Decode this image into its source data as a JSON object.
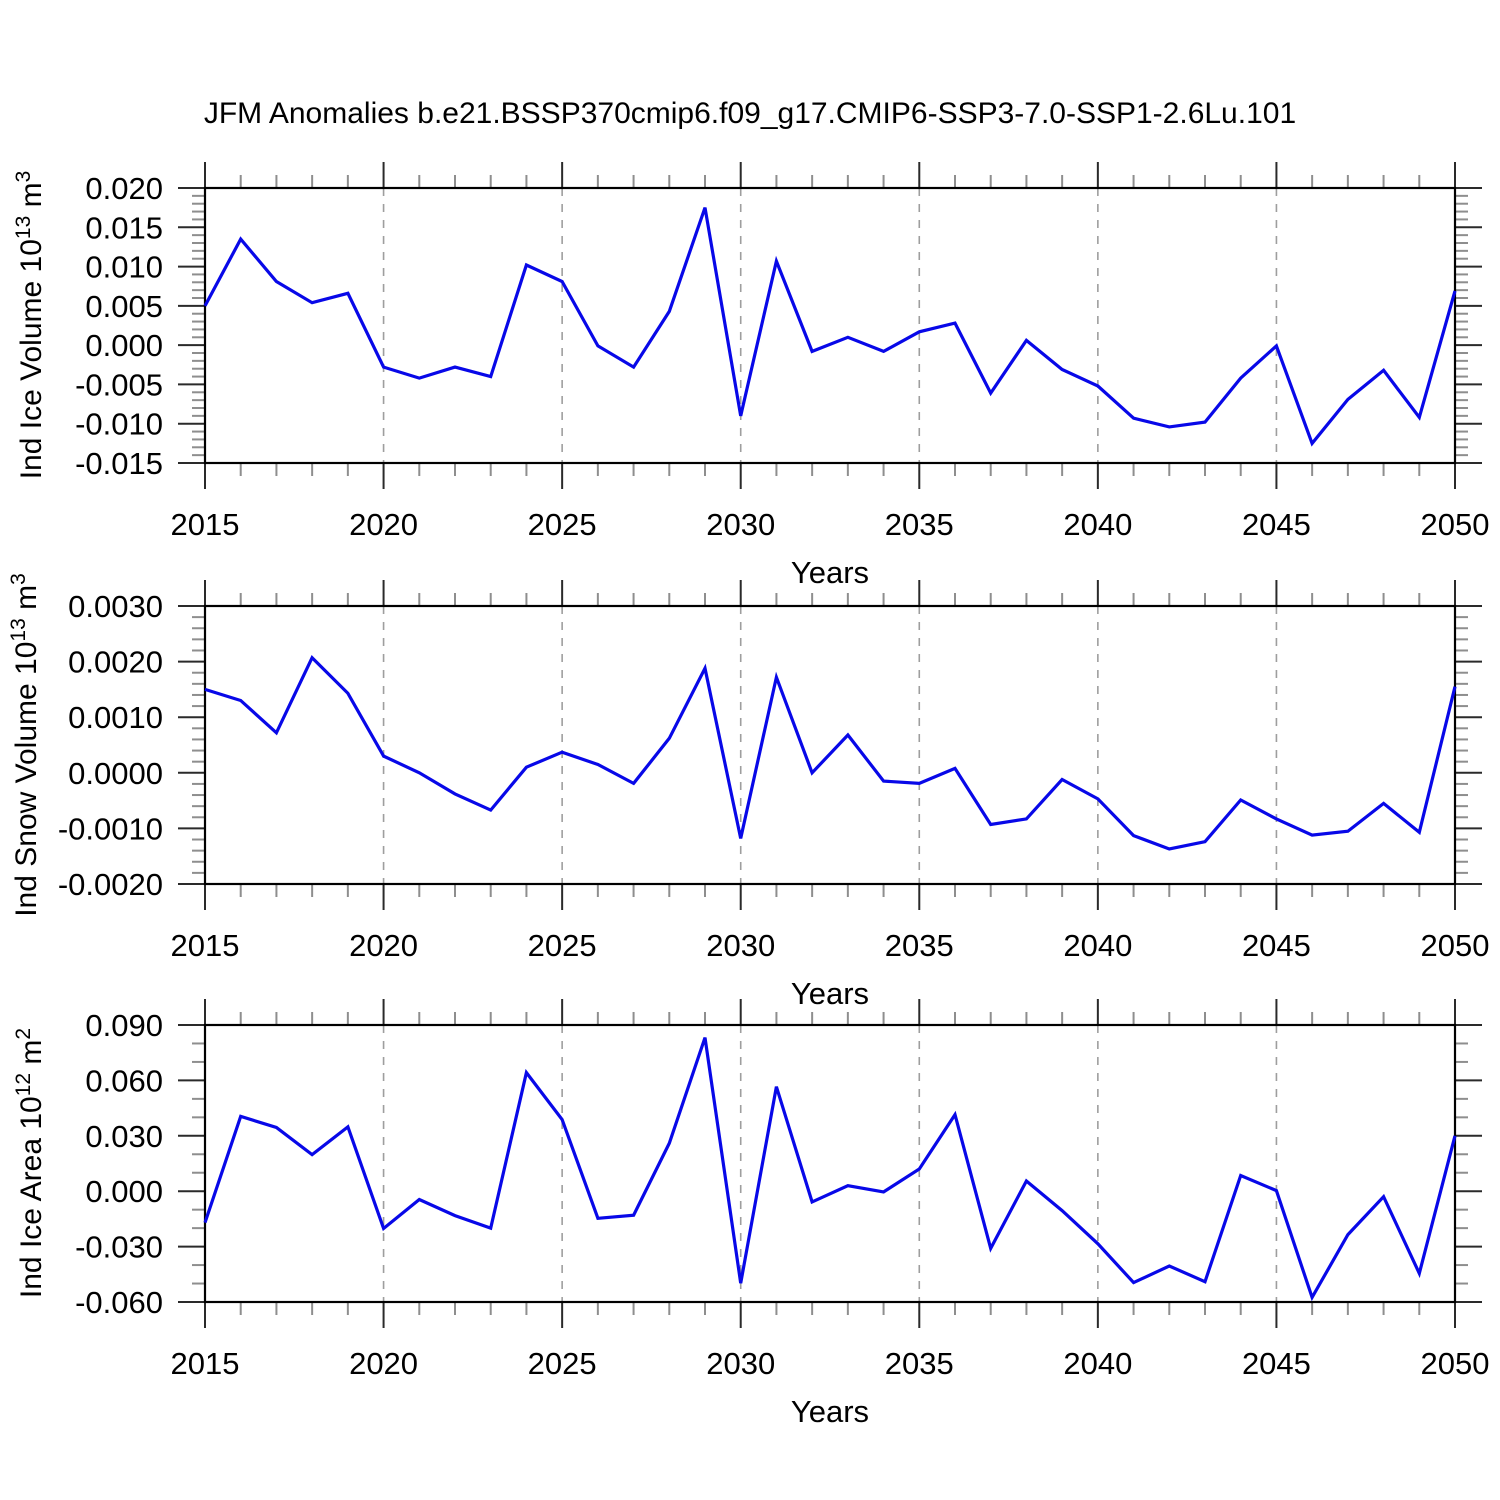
{
  "title": "JFM Anomalies b.e21.BSSP370cmip6.f09_g17.CMIP6-SSP3-7.0-SSP1-2.6Lu.101",
  "years": [
    2015,
    2016,
    2017,
    2018,
    2019,
    2020,
    2021,
    2022,
    2023,
    2024,
    2025,
    2026,
    2027,
    2028,
    2029,
    2030,
    2031,
    2032,
    2033,
    2034,
    2035,
    2036,
    2037,
    2038,
    2039,
    2040,
    2041,
    2042,
    2043,
    2044,
    2045,
    2046,
    2047,
    2048,
    2049,
    2050
  ],
  "colors": {
    "line": "#0808e8",
    "frame": "#000000",
    "grid": "#9e9e9e",
    "major_tick": "#2a2a2a",
    "minor_tick": "#8e8e8e",
    "text": "#000000"
  },
  "chart_data": [
    {
      "type": "line",
      "ylabel_parts": {
        "base": "Ind Ice Volume 10",
        "exp": "13",
        "unit": " m",
        "unit_exp": "3"
      },
      "xlabel": "Years",
      "ylim": [
        -0.015,
        0.02
      ],
      "ytick_values": [
        0.02,
        0.015,
        0.01,
        0.005,
        0.0,
        -0.005,
        -0.01,
        -0.015
      ],
      "ytick_labels": [
        "0.020",
        "0.015",
        "0.010",
        "0.005",
        "0.000",
        "-0.005",
        "-0.010",
        "-0.015"
      ],
      "y_minor_step": 0.001,
      "xticks": [
        2015,
        2020,
        2025,
        2030,
        2035,
        2040,
        2045,
        2050
      ],
      "x_gridlines": [
        2020,
        2025,
        2030,
        2035,
        2040,
        2045
      ],
      "values": [
        0.005,
        0.0135,
        0.0081,
        0.0054,
        0.0066,
        -0.0028,
        -0.0042,
        -0.0028,
        -0.004,
        0.0102,
        0.0081,
        -0.0001,
        -0.0028,
        0.0043,
        0.0175,
        -0.009,
        0.0107,
        -0.0008,
        0.001,
        -0.0008,
        0.0017,
        0.0028,
        -0.0061,
        0.0006,
        -0.0031,
        -0.0052,
        -0.0093,
        -0.0104,
        -0.0098,
        -0.0042,
        -0.0001,
        -0.0125,
        -0.0069,
        -0.0032,
        -0.0092,
        0.0069
      ]
    },
    {
      "type": "line",
      "ylabel_parts": {
        "base": "Ind Snow Volume 10",
        "exp": "13",
        "unit": " m",
        "unit_exp": "3"
      },
      "xlabel": "Years",
      "ylim": [
        -0.002,
        0.003
      ],
      "ytick_values": [
        0.003,
        0.002,
        0.001,
        0.0,
        -0.001,
        -0.002
      ],
      "ytick_labels": [
        "0.0030",
        "0.0020",
        "0.0010",
        "0.0000",
        "-0.0010",
        "-0.0020"
      ],
      "y_minor_step": 0.0002,
      "xticks": [
        2015,
        2020,
        2025,
        2030,
        2035,
        2040,
        2045,
        2050
      ],
      "x_gridlines": [
        2020,
        2025,
        2030,
        2035,
        2040,
        2045
      ],
      "values": [
        0.0015,
        0.0013,
        0.00072,
        0.00207,
        0.00143,
        0.0003,
        0.0,
        -0.00038,
        -0.00067,
        0.0001,
        0.00037,
        0.00015,
        -0.00019,
        0.00062,
        0.00188,
        -0.00118,
        0.00172,
        0.0,
        0.00068,
        -0.00015,
        -0.00019,
        8e-05,
        -0.00093,
        -0.00083,
        -0.00012,
        -0.00047,
        -0.00113,
        -0.00137,
        -0.00124,
        -0.00049,
        -0.00083,
        -0.00112,
        -0.00105,
        -0.00055,
        -0.00107,
        0.00155
      ]
    },
    {
      "type": "line",
      "ylabel_parts": {
        "base": "Ind Ice Area 10",
        "exp": "12",
        "unit": " m",
        "unit_exp": "2"
      },
      "xlabel": "Years",
      "ylim": [
        -0.06,
        0.09
      ],
      "ytick_values": [
        0.09,
        0.06,
        0.03,
        0.0,
        -0.03,
        -0.06
      ],
      "ytick_labels": [
        "0.090",
        "0.060",
        "0.030",
        "0.000",
        "-0.030",
        "-0.060"
      ],
      "y_minor_step": 0.01,
      "xticks": [
        2015,
        2020,
        2025,
        2030,
        2035,
        2040,
        2045,
        2050
      ],
      "x_gridlines": [
        2020,
        2025,
        2030,
        2035,
        2040,
        2045
      ],
      "values": [
        -0.017,
        0.0405,
        0.0345,
        0.0198,
        0.0348,
        -0.0202,
        -0.0045,
        -0.0132,
        -0.02,
        0.0642,
        0.0388,
        -0.0147,
        -0.013,
        0.026,
        0.0832,
        -0.0498,
        0.0566,
        -0.0058,
        0.003,
        -0.0004,
        0.012,
        0.0415,
        -0.031,
        0.0055,
        -0.0105,
        -0.0285,
        -0.0495,
        -0.0405,
        -0.049,
        0.0085,
        0.0003,
        -0.0575,
        -0.0235,
        -0.003,
        -0.0445,
        0.03
      ]
    }
  ]
}
